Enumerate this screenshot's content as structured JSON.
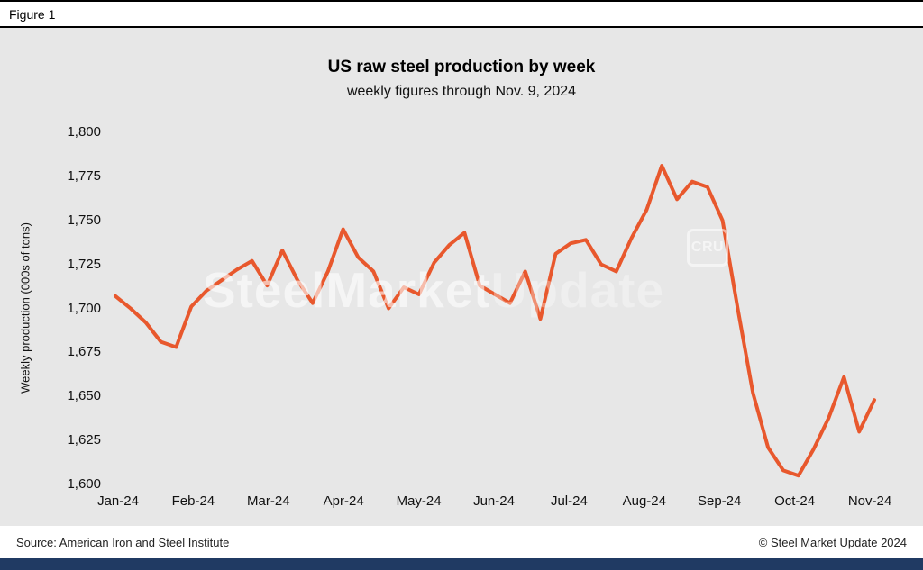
{
  "figure_label": "Figure 1",
  "chart_data": {
    "type": "line",
    "title": "US raw steel production by week",
    "subtitle": "weekly figures through Nov. 9, 2024",
    "xlabel": "",
    "ylabel": "Weekly production (000s of tons)",
    "ylim": [
      1600,
      1800
    ],
    "y_ticks": [
      1800,
      1775,
      1750,
      1725,
      1700,
      1675,
      1650,
      1625,
      1600
    ],
    "x_tick_labels": [
      "Jan-24",
      "Feb-24",
      "Mar-24",
      "Apr-24",
      "May-24",
      "Jun-24",
      "Jul-24",
      "Aug-24",
      "Sep-24",
      "Oct-24",
      "Nov-24"
    ],
    "frequency": "weekly",
    "grid": false,
    "legend": "none",
    "series": [
      {
        "name": "Weekly production",
        "color": "#e8582d",
        "values": [
          1707,
          1700,
          1692,
          1681,
          1678,
          1701,
          1710,
          1716,
          1722,
          1727,
          1713,
          1733,
          1716,
          1703,
          1721,
          1745,
          1729,
          1721,
          1700,
          1712,
          1708,
          1726,
          1736,
          1743,
          1713,
          1708,
          1703,
          1721,
          1694,
          1731,
          1737,
          1739,
          1725,
          1721,
          1740,
          1756,
          1781,
          1762,
          1772,
          1769,
          1750,
          1700,
          1652,
          1621,
          1608,
          1605,
          1620,
          1638,
          1661,
          1630,
          1648
        ]
      }
    ]
  },
  "watermark": {
    "primary": "SteelMarket",
    "secondary": "Update",
    "badge": "CRU"
  },
  "footer": {
    "source": "Source: American Iron and Steel Institute",
    "copyright": "© Steel Market Update 2024"
  }
}
